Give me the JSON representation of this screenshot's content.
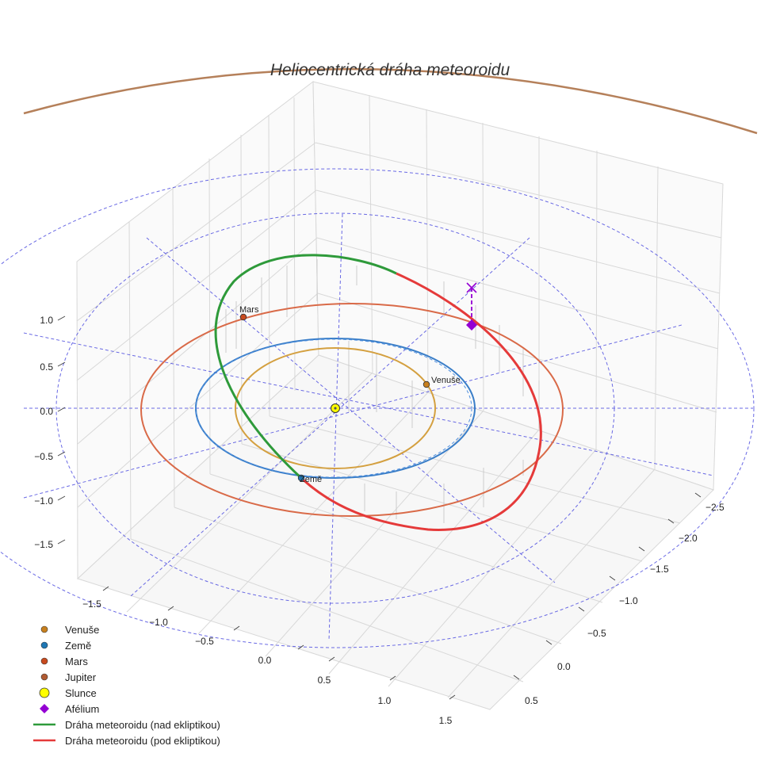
{
  "chart_data": {
    "type": "line",
    "projection": "3d",
    "title": "Heliocentrická dráha meteoroidu",
    "axes": {
      "x_ticks": [
        "−1.5",
        "−1.0",
        "−0.5",
        "0.0",
        "0.5",
        "1.0",
        "1.5"
      ],
      "y_ticks": [
        "−2.5",
        "−2.0",
        "−1.5",
        "−1.0",
        "−0.5",
        "0.0",
        "0.5"
      ],
      "z_ticks": [
        "1.0",
        "0.5",
        "0.0",
        "−0.5",
        "−1.0",
        "−1.5"
      ],
      "xlim": [
        -1.5,
        1.5
      ],
      "ylim": [
        -2.5,
        0.5
      ],
      "zlim": [
        -1.5,
        1.0
      ],
      "grid": true
    },
    "reference_circles_au": [
      1,
      2,
      3
    ],
    "orbits": [
      {
        "name": "Venuše",
        "semi_axis_au": 0.72,
        "color": "#d4a040"
      },
      {
        "name": "Země",
        "semi_axis_au": 1.0,
        "color": "#3a7ec8"
      },
      {
        "name": "Mars",
        "semi_axis_au": 1.52,
        "color": "#d96a48"
      },
      {
        "name": "Jupiter",
        "semi_axis_au": 5.2,
        "color": "#b5805a"
      }
    ],
    "meteoroid_segments": [
      {
        "name": "Dráha meteoroidu (nad ekliptikou)",
        "color": "#2e9a3a"
      },
      {
        "name": "Dráha meteoroidu (pod ekliptikou)",
        "color": "#e53a3a"
      }
    ],
    "point_labels": {
      "sun": "Slunce",
      "venus": "Venuše",
      "earth": "Země",
      "mars": "Mars",
      "aphelion": "Afélium"
    },
    "legend": [
      {
        "label": "Venuše",
        "marker": "circle",
        "color": "#c8801e"
      },
      {
        "label": "Země",
        "marker": "circle",
        "color": "#1f77b4"
      },
      {
        "label": "Mars",
        "marker": "circle",
        "color": "#c84a1e"
      },
      {
        "label": "Jupiter",
        "marker": "circle",
        "color": "#b05a32"
      },
      {
        "label": "Slunce",
        "marker": "circle-big",
        "color": "#ffff00"
      },
      {
        "label": "Afélium",
        "marker": "diamond",
        "color": "#9400d3"
      },
      {
        "label": "Dráha meteoroidu (nad ekliptikou)",
        "marker": "line",
        "color": "#2e9a3a"
      },
      {
        "label": "Dráha meteoroidu (pod ekliptikou)",
        "marker": "line",
        "color": "#e53a3a"
      }
    ],
    "legend_position": "bottom-left"
  }
}
